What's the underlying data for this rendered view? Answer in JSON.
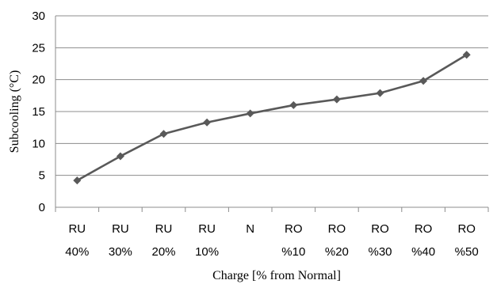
{
  "chart_data": {
    "type": "line",
    "title": "",
    "xlabel": "Charge [% from Normal]",
    "ylabel": "Subcooling (°C)",
    "ylim": [
      0,
      30
    ],
    "yticks": [
      0,
      5,
      10,
      15,
      20,
      25,
      30
    ],
    "grid": true,
    "legend": "none",
    "categories": [
      [
        "RU",
        "40%"
      ],
      [
        "RU",
        "30%"
      ],
      [
        "RU",
        "20%"
      ],
      [
        "RU",
        "10%"
      ],
      [
        "N",
        ""
      ],
      [
        "RO",
        "%10"
      ],
      [
        "RO",
        "%20"
      ],
      [
        "RO",
        "%30"
      ],
      [
        "RO",
        "%40"
      ],
      [
        "RO",
        "%50"
      ]
    ],
    "series": [
      {
        "values": [
          4.2,
          8.0,
          11.5,
          13.3,
          14.7,
          16.0,
          16.9,
          17.9,
          19.8,
          23.9
        ],
        "color": "#595959",
        "marker": "diamond"
      }
    ]
  }
}
